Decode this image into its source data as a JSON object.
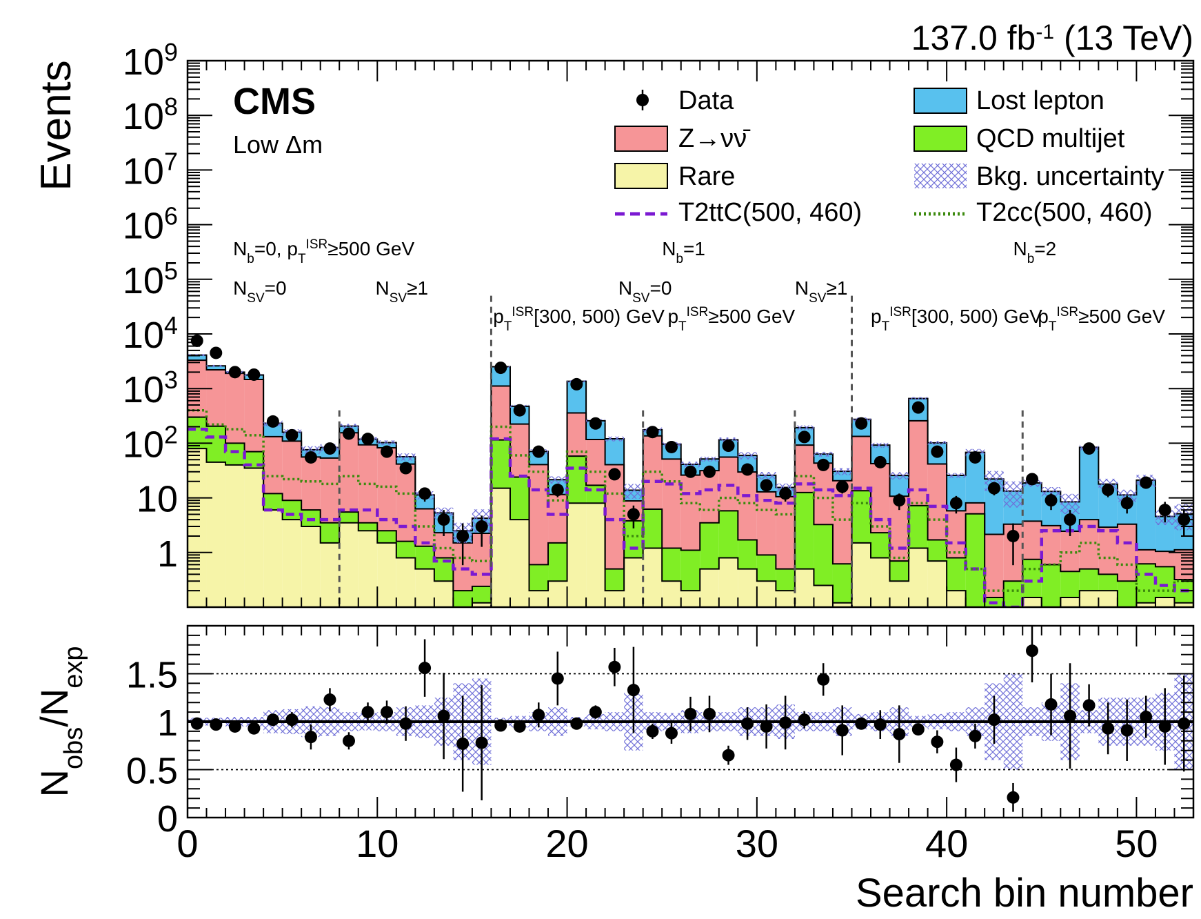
{
  "chart_data": {
    "type": "bar",
    "stacked": true,
    "luminosity_label": "137.0 fb",
    "luminosity_exponent": "-1",
    "energy_label": " (13 TeV)",
    "experiment": "CMS",
    "subtitle": "Low Δm",
    "ylabel": "Events",
    "ratio_ylabel_main": "N",
    "ratio_ylabel_num_sub": "obs",
    "ratio_ylabel_slash": "/N",
    "ratio_ylabel_den_sub": "exp",
    "xlabel": "Search bin number",
    "xlim": [
      0,
      53
    ],
    "ylim_log": [
      0.1,
      1000000000
    ],
    "y_log_scale": true,
    "ratio_ylim": [
      0,
      2
    ],
    "x_ticks": [
      "0",
      "10",
      "20",
      "30",
      "40",
      "50"
    ],
    "y_ticks": [
      {
        "value": 1000000000,
        "base": "10",
        "exp": "9"
      },
      {
        "value": 100000000,
        "base": "10",
        "exp": "8"
      },
      {
        "value": 10000000,
        "base": "10",
        "exp": "7"
      },
      {
        "value": 1000000,
        "base": "10",
        "exp": "6"
      },
      {
        "value": 100000,
        "base": "10",
        "exp": "5"
      },
      {
        "value": 10000,
        "base": "10",
        "exp": "4"
      },
      {
        "value": 1000,
        "base": "10",
        "exp": "3"
      },
      {
        "value": 100,
        "base": "10",
        "exp": "2"
      },
      {
        "value": 10,
        "base": "10",
        "exp": ""
      },
      {
        "value": 1,
        "base": "1",
        "exp": ""
      }
    ],
    "ratio_ticks": [
      "0",
      "0.5",
      "1",
      "1.5"
    ],
    "legend": {
      "data": "Data",
      "znunu": "Z→νν̄",
      "rare": "Rare",
      "lost_lepton": "Lost lepton",
      "qcd": "QCD multijet",
      "uncertainty": "Bkg. uncertainty",
      "t2ttc": "T2ttC(500, 460)",
      "t2cc": "T2cc(500, 460)"
    },
    "colors": {
      "rare": "#f6f4a8",
      "qcd": "#80ee25",
      "znunu": "#f69597",
      "lost_lepton": "#58c1ee",
      "uncertainty": "#6f6fd8",
      "t2ttc": "#7b19d2",
      "t2cc": "#3c8a0e"
    },
    "region_labels": [
      {
        "x": 2.4,
        "row": 1,
        "parts": [
          [
            "N",
            ""
          ],
          [
            "b",
            "sub"
          ],
          [
            "=0, p",
            ""
          ],
          [
            "T",
            "sub"
          ],
          [
            "ISR",
            "sup"
          ],
          [
            "≥500 GeV",
            ""
          ]
        ]
      },
      {
        "x": 2.4,
        "row": 2,
        "parts": [
          [
            "N",
            ""
          ],
          [
            "SV",
            "sub"
          ],
          [
            "=0",
            ""
          ]
        ]
      },
      {
        "x": 9.9,
        "row": 2,
        "parts": [
          [
            "N",
            ""
          ],
          [
            "SV",
            "sub"
          ],
          [
            "≥1",
            ""
          ]
        ]
      },
      {
        "x": 25.0,
        "row": 1,
        "parts": [
          [
            "N",
            ""
          ],
          [
            "b",
            "sub"
          ],
          [
            "=1",
            ""
          ]
        ]
      },
      {
        "x": 22.7,
        "row": 2,
        "parts": [
          [
            "N",
            ""
          ],
          [
            "SV",
            "sub"
          ],
          [
            "=0",
            ""
          ]
        ]
      },
      {
        "x": 32.0,
        "row": 2,
        "parts": [
          [
            "N",
            ""
          ],
          [
            "SV",
            "sub"
          ],
          [
            "≥1",
            ""
          ]
        ]
      },
      {
        "x": 16.1,
        "row": 3,
        "parts": [
          [
            "p",
            ""
          ],
          [
            "T",
            "sub"
          ],
          [
            "ISR",
            "sup"
          ],
          [
            "[300, 500) GeV",
            ""
          ]
        ]
      },
      {
        "x": 25.3,
        "row": 3,
        "parts": [
          [
            "p",
            ""
          ],
          [
            "T",
            "sub"
          ],
          [
            "ISR",
            "sup"
          ],
          [
            "≥500 GeV",
            ""
          ]
        ]
      },
      {
        "x": 43.5,
        "row": 1,
        "parts": [
          [
            "N",
            ""
          ],
          [
            "b",
            "sub"
          ],
          [
            "=2",
            ""
          ]
        ]
      },
      {
        "x": 36.0,
        "row": 3,
        "parts": [
          [
            "p",
            ""
          ],
          [
            "T",
            "sub"
          ],
          [
            "ISR",
            "sup"
          ],
          [
            "[300, 500) GeV",
            ""
          ]
        ]
      },
      {
        "x": 44.8,
        "row": 3,
        "parts": [
          [
            "p",
            ""
          ],
          [
            "T",
            "sub"
          ],
          [
            "ISR",
            "sup"
          ],
          [
            "≥500 GeV",
            ""
          ]
        ]
      }
    ],
    "dividers": [
      {
        "x": 8,
        "top": 400
      },
      {
        "x": 16,
        "top": 50000
      },
      {
        "x": 24,
        "top": 400
      },
      {
        "x": 32,
        "top": 400
      },
      {
        "x": 35,
        "top": 50000
      },
      {
        "x": 44,
        "top": 400
      }
    ],
    "rare": [
      80,
      45,
      40,
      35,
      6,
      4,
      3,
      1.5,
      3.5,
      2.5,
      1.5,
      0.8,
      0.5,
      0.3,
      0.1,
      0.12,
      15,
      4,
      0.2,
      0.3,
      8,
      8,
      0.2,
      0.8,
      1.2,
      0.3,
      0.2,
      0.5,
      0.8,
      0.5,
      0.3,
      0.2,
      0.5,
      0.25,
      0.12,
      1.5,
      0.8,
      0.3,
      1.2,
      0.7,
      0.2,
      0.1,
      0.05,
      0.1,
      0.15,
      0.1,
      0.15,
      0.2,
      0.2,
      0.1,
      0.12,
      0.15,
      0.12
    ],
    "qcd": [
      220,
      160,
      60,
      35,
      6,
      5,
      3,
      2,
      2,
      1,
      1,
      0.8,
      0.8,
      0.5,
      0.1,
      0.12,
      100,
      20,
      0.4,
      1.2,
      50,
      9,
      0.3,
      3,
      5,
      0.9,
      0.9,
      3,
      5,
      1.2,
      0.6,
      0.3,
      12,
      3,
      0.5,
      12,
      1.5,
      0.4,
      6,
      1,
      0.6,
      5,
      0.1,
      0.2,
      0.6,
      0.5,
      0.3,
      0.3,
      0.2,
      0.2,
      0.5,
      0.4,
      0.2
    ],
    "znunu": [
      3000,
      2000,
      1800,
      1400,
      120,
      100,
      50,
      50,
      150,
      90,
      80,
      40,
      5,
      1.5,
      1.3,
      2,
      1000,
      200,
      40,
      10,
      300,
      100,
      40,
      5,
      130,
      50,
      25,
      28,
      50,
      28,
      12,
      10,
      80,
      40,
      20,
      120,
      40,
      10,
      250,
      40,
      5,
      3,
      2,
      3,
      3,
      2.5,
      2,
      3.5,
      2.5,
      3,
      0.5,
      0.5,
      0.8
    ],
    "lost_lepton": [
      800,
      400,
      100,
      300,
      100,
      50,
      20,
      30,
      50,
      25,
      20,
      15,
      5,
      3,
      1,
      2,
      1400,
      250,
      30,
      10,
      1000,
      140,
      80,
      5,
      40,
      45,
      15,
      20,
      60,
      30,
      13,
      5,
      100,
      20,
      10,
      140,
      50,
      15,
      400,
      60,
      20,
      60,
      20,
      10,
      15,
      10,
      6,
      80,
      15,
      8,
      20,
      3.5,
      4
    ],
    "data": [
      7500,
      4500,
      2000,
      1800,
      250,
      140,
      55,
      80,
      150,
      120,
      70,
      35,
      12,
      4,
      2,
      3,
      2400,
      400,
      70,
      14,
      1200,
      230,
      27,
      5,
      160,
      85,
      30,
      30,
      90,
      33,
      17,
      12,
      130,
      40,
      16,
      230,
      45,
      9,
      450,
      70,
      8,
      55,
      15,
      2,
      22,
      9,
      4,
      80,
      14,
      8,
      19,
      6,
      4
    ],
    "ratio": [
      0.98,
      0.97,
      0.95,
      0.93,
      1.02,
      1.02,
      0.84,
      1.23,
      0.8,
      1.1,
      1.1,
      0.98,
      1.56,
      1.06,
      0.77,
      0.78,
      0.96,
      0.95,
      1.07,
      1.45,
      0.98,
      1.1,
      1.57,
      1.33,
      0.9,
      0.88,
      1.08,
      1.08,
      0.65,
      0.98,
      0.95,
      0.99,
      1.02,
      1.44,
      0.91,
      0.98,
      0.97,
      0.87,
      0.92,
      0.79,
      0.55,
      0.85,
      1.02,
      0.21,
      1.74,
      1.18,
      1.06,
      1.17,
      0.93,
      0.91,
      1.05,
      0.95,
      0.98
    ],
    "ratio_err": [
      0.02,
      0.02,
      0.03,
      0.03,
      0.06,
      0.08,
      0.13,
      0.12,
      0.09,
      0.1,
      0.12,
      0.18,
      0.3,
      0.45,
      0.5,
      0.6,
      0.03,
      0.05,
      0.13,
      0.28,
      0.04,
      0.07,
      0.2,
      0.45,
      0.08,
      0.11,
      0.18,
      0.19,
      0.1,
      0.17,
      0.23,
      0.28,
      0.09,
      0.17,
      0.26,
      0.06,
      0.15,
      0.3,
      0.05,
      0.12,
      0.18,
      0.13,
      0.25,
      0.15,
      0.33,
      0.32,
      0.55,
      0.22,
      0.27,
      0.32,
      0.22,
      0.4,
      0.5
    ],
    "unc_frac": [
      0.04,
      0.04,
      0.05,
      0.05,
      0.12,
      0.13,
      0.16,
      0.15,
      0.1,
      0.09,
      0.1,
      0.15,
      0.17,
      0.25,
      0.4,
      0.45,
      0.04,
      0.06,
      0.1,
      0.15,
      0.05,
      0.08,
      0.1,
      0.3,
      0.1,
      0.09,
      0.12,
      0.1,
      0.1,
      0.15,
      0.15,
      0.18,
      0.1,
      0.1,
      0.15,
      0.08,
      0.1,
      0.15,
      0.06,
      0.08,
      0.1,
      0.15,
      0.4,
      0.5,
      0.15,
      0.2,
      0.4,
      0.12,
      0.25,
      0.25,
      0.25,
      0.3,
      0.5
    ],
    "t2ttc": [
      180,
      130,
      70,
      40,
      6,
      5,
      4,
      4,
      6,
      6,
      4,
      3,
      1.5,
      0.7,
      0.5,
      0.4,
      120,
      25,
      14,
      5,
      35,
      14,
      4,
      1.2,
      20,
      18,
      12,
      14,
      17,
      11,
      9,
      8,
      18,
      14,
      11,
      15,
      4,
      1.2,
      14,
      7,
      1.5,
      0.5,
      0.12,
      0.1,
      0.3,
      2.5,
      2.5,
      3,
      2.5,
      1.5,
      0.4,
      0.25,
      0.2
    ],
    "t2cc": [
      400,
      220,
      180,
      140,
      25,
      22,
      20,
      18,
      25,
      18,
      16,
      12,
      3,
      1.2,
      0.8,
      0.7,
      200,
      60,
      30,
      9,
      70,
      30,
      12,
      2,
      30,
      20,
      8,
      6,
      10,
      8,
      6,
      5,
      25,
      10,
      4,
      8,
      3,
      0.8,
      8,
      4,
      1,
      0.5,
      0.2,
      0.2,
      0.5,
      0.6,
      1,
      1.5,
      0.8,
      0.6,
      0.2,
      0.2,
      0.3
    ]
  }
}
